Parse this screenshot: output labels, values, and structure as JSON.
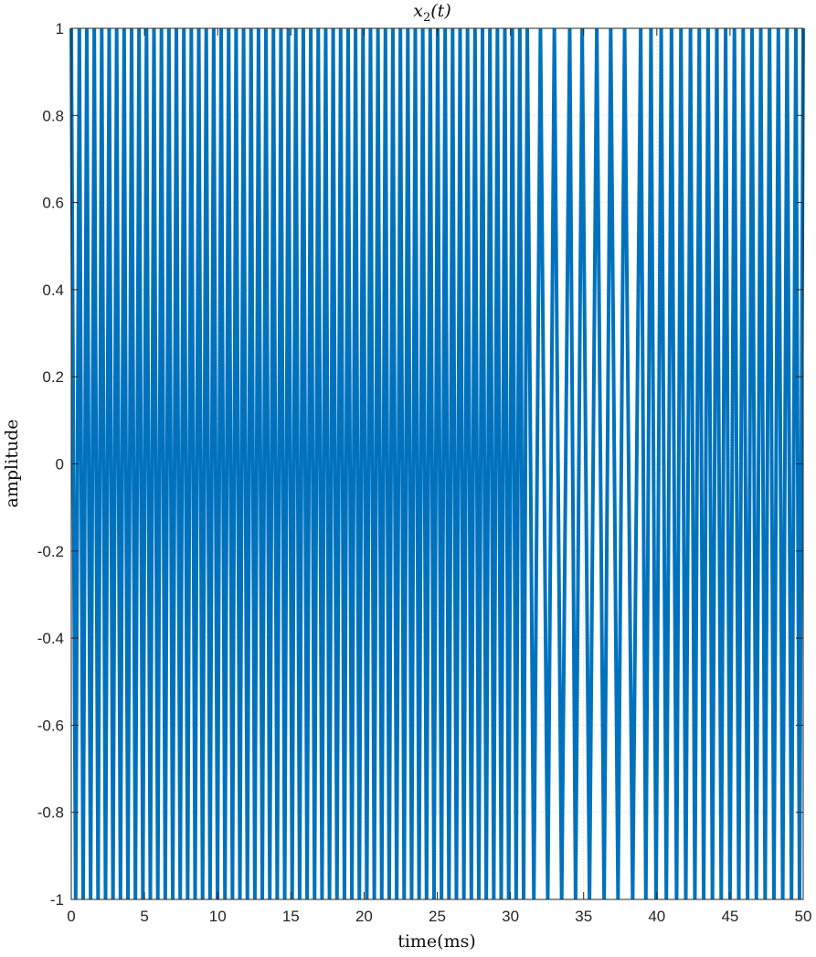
{
  "chart_data": {
    "type": "line",
    "title": "x",
    "title_subscript": "2",
    "title_suffix": "(t)",
    "xlabel": "time(ms)",
    "ylabel": "amplitude",
    "xlim": [
      0,
      50
    ],
    "ylim": [
      -1,
      1
    ],
    "xticks": [
      0,
      5,
      10,
      15,
      20,
      25,
      30,
      35,
      40,
      45,
      50
    ],
    "xtick_labels": [
      "0",
      "5",
      "10",
      "15",
      "20",
      "25",
      "30",
      "35",
      "40",
      "45",
      "50"
    ],
    "yticks": [
      -1,
      -0.8,
      -0.6,
      -0.4,
      -0.2,
      0,
      0.2,
      0.4,
      0.6,
      0.8,
      1
    ],
    "ytick_labels": [
      "-1",
      "-0.8",
      "-0.6",
      "-0.4",
      "-0.2",
      "0",
      "0.2",
      "0.4",
      "0.6",
      "0.8",
      "1"
    ],
    "grid": true,
    "series": [
      {
        "color": "#0072BD",
        "peak_times_ms": [
          0.0,
          0.55,
          1.06,
          1.57,
          2.08,
          2.59,
          3.1,
          3.61,
          4.12,
          4.63,
          5.14,
          5.65,
          6.16,
          6.67,
          7.18,
          7.69,
          8.2,
          8.71,
          9.22,
          9.73,
          10.24,
          10.75,
          11.26,
          11.77,
          12.28,
          12.79,
          13.3,
          13.81,
          14.32,
          14.83,
          15.34,
          15.85,
          16.36,
          16.87,
          17.38,
          17.89,
          18.4,
          18.91,
          19.42,
          19.93,
          20.44,
          20.95,
          21.46,
          21.97,
          22.48,
          22.99,
          23.5,
          24.01,
          24.52,
          25.03,
          25.54,
          26.05,
          26.56,
          27.07,
          27.58,
          28.09,
          28.6,
          29.11,
          29.62,
          30.13,
          30.64,
          31.15,
          32.05,
          33.0,
          34.05,
          34.9,
          35.9,
          36.85,
          37.8,
          38.9,
          39.6,
          40.3,
          41.0,
          41.65,
          42.3,
          42.9,
          43.5,
          44.1,
          44.7,
          45.3,
          45.9,
          46.5,
          47.1,
          47.7,
          48.3,
          48.9,
          49.5,
          50.0
        ],
        "trough_times_ms": [
          0.3,
          0.81,
          1.32,
          1.83,
          2.34,
          2.85,
          3.36,
          3.87,
          4.38,
          4.89,
          5.4,
          5.91,
          6.42,
          6.93,
          7.44,
          7.95,
          8.46,
          8.97,
          9.48,
          9.99,
          10.5,
          11.01,
          11.52,
          12.03,
          12.54,
          13.05,
          13.56,
          14.07,
          14.58,
          15.09,
          15.6,
          16.11,
          16.62,
          17.13,
          17.64,
          18.15,
          18.66,
          19.17,
          19.68,
          20.19,
          20.7,
          21.21,
          21.72,
          22.23,
          22.74,
          23.25,
          23.76,
          24.27,
          24.78,
          25.29,
          25.8,
          26.31,
          26.82,
          27.33,
          27.84,
          28.35,
          28.86,
          29.37,
          29.88,
          30.39,
          30.9,
          31.6,
          32.55,
          33.5,
          34.45,
          35.4,
          36.4,
          37.35,
          38.35,
          39.25,
          39.95,
          40.65,
          41.35,
          41.98,
          42.6,
          43.2,
          43.8,
          44.4,
          45.0,
          45.6,
          46.2,
          46.8,
          47.4,
          48.0,
          48.6,
          49.2,
          49.75
        ]
      }
    ]
  }
}
